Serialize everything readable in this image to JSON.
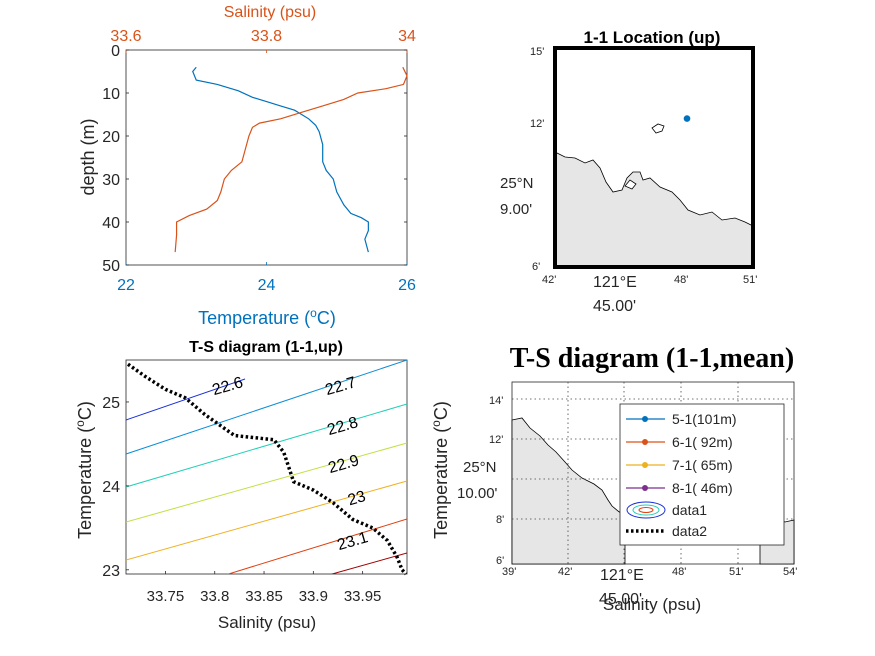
{
  "colors": {
    "temp": "#0072bd",
    "sal": "#d95319",
    "land": "#e6e6e6",
    "c5": "#0072bd",
    "c6": "#d95319",
    "c7": "#edb120",
    "c8": "#7e2f8e"
  },
  "chart_data": [
    {
      "id": "profile",
      "type": "line",
      "xlabel_bottom_pre": "Temperature (",
      "xlabel_bottom_sup": "o",
      "xlabel_bottom_post": "C)",
      "xlabel_top": "Salinity (psu)",
      "ylabel": "depth (m)",
      "x_bottom_range": [
        22,
        26
      ],
      "x_top_range": [
        33.6,
        34
      ],
      "y_range": [
        0,
        50
      ],
      "x_bottom_ticks": [
        "22",
        "24",
        "26"
      ],
      "x_top_ticks": [
        "33.6",
        "33.8",
        "34"
      ],
      "y_ticks": [
        "0",
        "10",
        "20",
        "30",
        "40",
        "50"
      ],
      "temperature": [
        [
          23.0,
          4.0
        ],
        [
          22.95,
          5.0
        ],
        [
          23.0,
          7.0
        ],
        [
          23.3,
          8.0
        ],
        [
          23.6,
          9.5
        ],
        [
          23.8,
          11.0
        ],
        [
          24.0,
          12.0
        ],
        [
          24.2,
          13.0
        ],
        [
          24.4,
          14.0
        ],
        [
          24.5,
          15.0
        ],
        [
          24.6,
          16.0
        ],
        [
          24.7,
          17.5
        ],
        [
          24.75,
          19.0
        ],
        [
          24.8,
          22.0
        ],
        [
          24.8,
          26.0
        ],
        [
          24.85,
          28.0
        ],
        [
          24.95,
          30.0
        ],
        [
          25.0,
          33.0
        ],
        [
          25.1,
          36.0
        ],
        [
          25.2,
          38.0
        ],
        [
          25.35,
          39.0
        ],
        [
          25.45,
          40.0
        ],
        [
          25.45,
          42.0
        ],
        [
          25.4,
          44.0
        ],
        [
          25.45,
          47.0
        ]
      ],
      "salinity": [
        [
          33.994,
          4.0
        ],
        [
          34.0,
          6.0
        ],
        [
          33.995,
          8.0
        ],
        [
          33.97,
          9.0
        ],
        [
          33.93,
          10.0
        ],
        [
          33.91,
          11.5
        ],
        [
          33.88,
          13.0
        ],
        [
          33.85,
          14.5
        ],
        [
          33.82,
          16.0
        ],
        [
          33.79,
          17.0
        ],
        [
          33.78,
          18.0
        ],
        [
          33.775,
          20.0
        ],
        [
          33.77,
          23.0
        ],
        [
          33.765,
          26.0
        ],
        [
          33.75,
          28.0
        ],
        [
          33.74,
          30.0
        ],
        [
          33.735,
          33.0
        ],
        [
          33.73,
          35.0
        ],
        [
          33.715,
          37.0
        ],
        [
          33.69,
          38.5
        ],
        [
          33.672,
          40.0
        ],
        [
          33.672,
          43.0
        ],
        [
          33.67,
          47.0
        ]
      ]
    },
    {
      "id": "location",
      "type": "map",
      "title": "1-1 Location (up)",
      "xticks": [
        "42'",
        "45.00'",
        "48'",
        "51'"
      ],
      "xtick_major": "121°E",
      "yticks": [
        "6'",
        "9.00'",
        "12'",
        "15'"
      ],
      "ytick_major": "25°N",
      "x_range": [
        42,
        51
      ],
      "y_range": [
        6,
        15
      ],
      "station": [
        [
          48.0,
          12.1
        ]
      ]
    },
    {
      "id": "ts_up",
      "type": "line",
      "title": "T-S diagram (1-1,up)",
      "xlabel": "Salinity (psu)",
      "ylabel_pre": "Temperature (",
      "ylabel_sup": "o",
      "ylabel_post": "C)",
      "x_range": [
        33.71,
        33.995
      ],
      "y_range": [
        22.95,
        25.5
      ],
      "xticks": [
        "33.75",
        "33.8",
        "33.85",
        "33.9",
        "33.95"
      ],
      "yticks": [
        "23",
        "24",
        "25"
      ],
      "contour_labels": [
        "22.6",
        "22.7",
        "22.8",
        "22.9",
        "23",
        "23.1"
      ],
      "profile": [
        [
          33.712,
          25.45
        ],
        [
          33.73,
          25.3
        ],
        [
          33.75,
          25.15
        ],
        [
          33.77,
          25.05
        ],
        [
          33.79,
          24.85
        ],
        [
          33.82,
          24.6
        ],
        [
          33.86,
          24.55
        ],
        [
          33.87,
          24.4
        ],
        [
          33.88,
          24.05
        ],
        [
          33.9,
          23.95
        ],
        [
          33.92,
          23.8
        ],
        [
          33.94,
          23.6
        ],
        [
          33.96,
          23.5
        ],
        [
          33.975,
          23.35
        ],
        [
          33.985,
          23.15
        ],
        [
          33.99,
          23.0
        ],
        [
          33.994,
          22.95
        ]
      ]
    },
    {
      "id": "ts_mean",
      "type": "map",
      "title": "T-S diagram (1-1,mean)",
      "xlabel": "Salinity (psu)",
      "ylabel_pre": "Temperature (",
      "ylabel_sup": "o",
      "ylabel_post": "C)",
      "xticks": [
        "39'",
        "42'",
        "45.00'",
        "48'",
        "51'",
        "54'"
      ],
      "xtick_major": "121°E",
      "yticks": [
        "6'",
        "8'",
        "10.00'",
        "12'",
        "14'"
      ],
      "ytick_major": "25°N",
      "legend": [
        {
          "label": "5-1(101m)",
          "color": "c5"
        },
        {
          "label": "6-1( 92m)",
          "color": "c6"
        },
        {
          "label": "7-1( 65m)",
          "color": "c7"
        },
        {
          "label": "8-1( 46m)",
          "color": "c8"
        },
        {
          "label": "data1",
          "color": "contour"
        },
        {
          "label": "data2",
          "color": "black-dotted"
        }
      ]
    }
  ]
}
